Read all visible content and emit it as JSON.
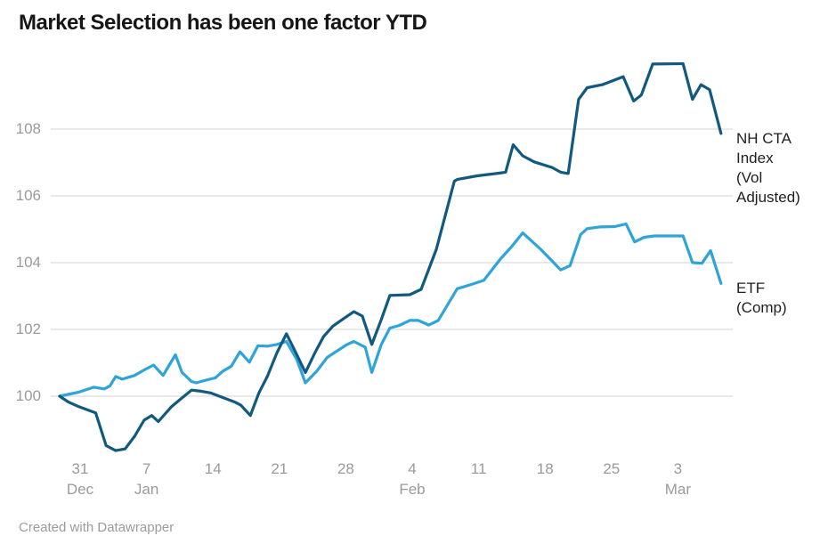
{
  "title": "Market Selection has been one factor YTD",
  "footer": {
    "attribution": "Created with Datawrapper"
  },
  "colors": {
    "background": "#ffffff",
    "grid": "#e2e2e2",
    "axis_text": "#9a9a9a",
    "title_text": "#161616",
    "series_label_text": "#202020",
    "nh_cta_line": "#11597e",
    "etf_line": "#2da4da"
  },
  "chart_data": {
    "type": "line",
    "title": "Market Selection has been one factor YTD",
    "xlabel": "",
    "ylabel": "",
    "grid": true,
    "legend_position": "right-of-line-ends",
    "y_axis": {
      "ticks": [
        100,
        102,
        104,
        106,
        108
      ],
      "range": [
        97.8,
        110.5
      ]
    },
    "x_axis": {
      "unit": "days-from-series-start",
      "ticks": [
        {
          "t": 2.16,
          "day": "31",
          "month": "Dec"
        },
        {
          "t": 9.16,
          "day": "7",
          "month": "Jan"
        },
        {
          "t": 16.16,
          "day": "14",
          "month": ""
        },
        {
          "t": 23.16,
          "day": "21",
          "month": ""
        },
        {
          "t": 30.16,
          "day": "28",
          "month": ""
        },
        {
          "t": 37.16,
          "day": "4",
          "month": "Feb"
        },
        {
          "t": 44.16,
          "day": "11",
          "month": ""
        },
        {
          "t": 51.16,
          "day": "18",
          "month": ""
        },
        {
          "t": 58.16,
          "day": "25",
          "month": ""
        },
        {
          "t": 65.16,
          "day": "3",
          "month": "Mar"
        }
      ]
    },
    "series": [
      {
        "name": "ETF (Comp)",
        "slug": "etf-comp",
        "label_lines": [
          "ETF",
          "(Comp)"
        ],
        "color": "#2da4da",
        "points": [
          [
            0,
            100
          ],
          [
            2,
            100.12
          ],
          [
            3.6,
            100.27
          ],
          [
            4.7,
            100.22
          ],
          [
            5.3,
            100.31
          ],
          [
            5.9,
            100.59
          ],
          [
            6.6,
            100.51
          ],
          [
            7.9,
            100.62
          ],
          [
            9,
            100.8
          ],
          [
            9.9,
            100.93
          ],
          [
            10.9,
            100.62
          ],
          [
            12.2,
            101.24
          ],
          [
            12.9,
            100.71
          ],
          [
            13.9,
            100.44
          ],
          [
            14.4,
            100.4
          ],
          [
            15.4,
            100.48
          ],
          [
            16.4,
            100.55
          ],
          [
            17.2,
            100.75
          ],
          [
            18.1,
            100.9
          ],
          [
            19,
            101.33
          ],
          [
            20,
            101.02
          ],
          [
            20.9,
            101.51
          ],
          [
            21.9,
            101.5
          ],
          [
            22.9,
            101.55
          ],
          [
            23.9,
            101.64
          ],
          [
            25,
            101.1
          ],
          [
            25.9,
            100.4
          ],
          [
            27.1,
            100.75
          ],
          [
            28.2,
            101.16
          ],
          [
            29.2,
            101.35
          ],
          [
            30.3,
            101.55
          ],
          [
            31,
            101.64
          ],
          [
            32.2,
            101.47
          ],
          [
            32.9,
            100.71
          ],
          [
            33.9,
            101.55
          ],
          [
            34.8,
            102.04
          ],
          [
            35.8,
            102.12
          ],
          [
            36.9,
            102.27
          ],
          [
            37.8,
            102.27
          ],
          [
            38.9,
            102.13
          ],
          [
            39.9,
            102.27
          ],
          [
            41.9,
            103.22
          ],
          [
            43.2,
            103.33
          ],
          [
            44.7,
            103.47
          ],
          [
            46.4,
            104.09
          ],
          [
            47.7,
            104.5
          ],
          [
            48.8,
            104.89
          ],
          [
            50.7,
            104.4
          ],
          [
            51.9,
            104.05
          ],
          [
            52.8,
            103.78
          ],
          [
            53.8,
            103.91
          ],
          [
            54.9,
            104.84
          ],
          [
            55.6,
            105.02
          ],
          [
            56.9,
            105.07
          ],
          [
            58.5,
            105.08
          ],
          [
            59.7,
            105.16
          ],
          [
            60.6,
            104.62
          ],
          [
            61.6,
            104.76
          ],
          [
            62.7,
            104.8
          ],
          [
            65.7,
            104.8
          ],
          [
            66.7,
            104
          ],
          [
            67.7,
            103.98
          ],
          [
            68.6,
            104.36
          ],
          [
            69.7,
            103.38
          ]
        ]
      },
      {
        "name": "NH CTA Index (Vol Adjusted)",
        "slug": "nh-cta-index",
        "label_lines": [
          "NH CTA",
          "Index",
          "(Vol",
          "Adjusted)"
        ],
        "color": "#11597e",
        "points": [
          [
            0,
            100
          ],
          [
            0.9,
            99.83
          ],
          [
            1.9,
            99.7
          ],
          [
            3.8,
            99.5
          ],
          [
            4.9,
            98.52
          ],
          [
            5.9,
            98.37
          ],
          [
            6.9,
            98.42
          ],
          [
            7.9,
            98.8
          ],
          [
            8.9,
            99.28
          ],
          [
            9.7,
            99.42
          ],
          [
            10.4,
            99.24
          ],
          [
            11.8,
            99.69
          ],
          [
            12.9,
            99.95
          ],
          [
            13.9,
            100.18
          ],
          [
            14.9,
            100.15
          ],
          [
            15.9,
            100.1
          ],
          [
            17.2,
            99.96
          ],
          [
            18.5,
            99.82
          ],
          [
            19.1,
            99.73
          ],
          [
            20.1,
            99.42
          ],
          [
            21,
            100.1
          ],
          [
            21.9,
            100.6
          ],
          [
            22.9,
            101.3
          ],
          [
            23.9,
            101.87
          ],
          [
            24.9,
            101.3
          ],
          [
            25.9,
            100.71
          ],
          [
            26.9,
            101.3
          ],
          [
            27.8,
            101.78
          ],
          [
            28.8,
            102.1
          ],
          [
            29.8,
            102.3
          ],
          [
            31,
            102.53
          ],
          [
            31.9,
            102.4
          ],
          [
            32.9,
            101.55
          ],
          [
            33.9,
            102.3
          ],
          [
            34.8,
            103.02
          ],
          [
            36.9,
            103.04
          ],
          [
            38.1,
            103.2
          ],
          [
            39.7,
            104.4
          ],
          [
            41.6,
            106.44
          ],
          [
            41.9,
            106.49
          ],
          [
            44,
            106.6
          ],
          [
            46.3,
            106.68
          ],
          [
            47,
            106.71
          ],
          [
            47.8,
            107.53
          ],
          [
            48.8,
            107.2
          ],
          [
            50,
            107.02
          ],
          [
            51.9,
            106.85
          ],
          [
            52.8,
            106.71
          ],
          [
            53.6,
            106.67
          ],
          [
            54.7,
            108.89
          ],
          [
            55.6,
            109.24
          ],
          [
            57.2,
            109.33
          ],
          [
            59.4,
            109.57
          ],
          [
            60.5,
            108.84
          ],
          [
            61.3,
            109.02
          ],
          [
            62.5,
            109.95
          ],
          [
            65.7,
            109.96
          ],
          [
            66.7,
            108.89
          ],
          [
            67.6,
            109.33
          ],
          [
            68.5,
            109.18
          ],
          [
            69.7,
            107.87
          ]
        ]
      }
    ]
  }
}
